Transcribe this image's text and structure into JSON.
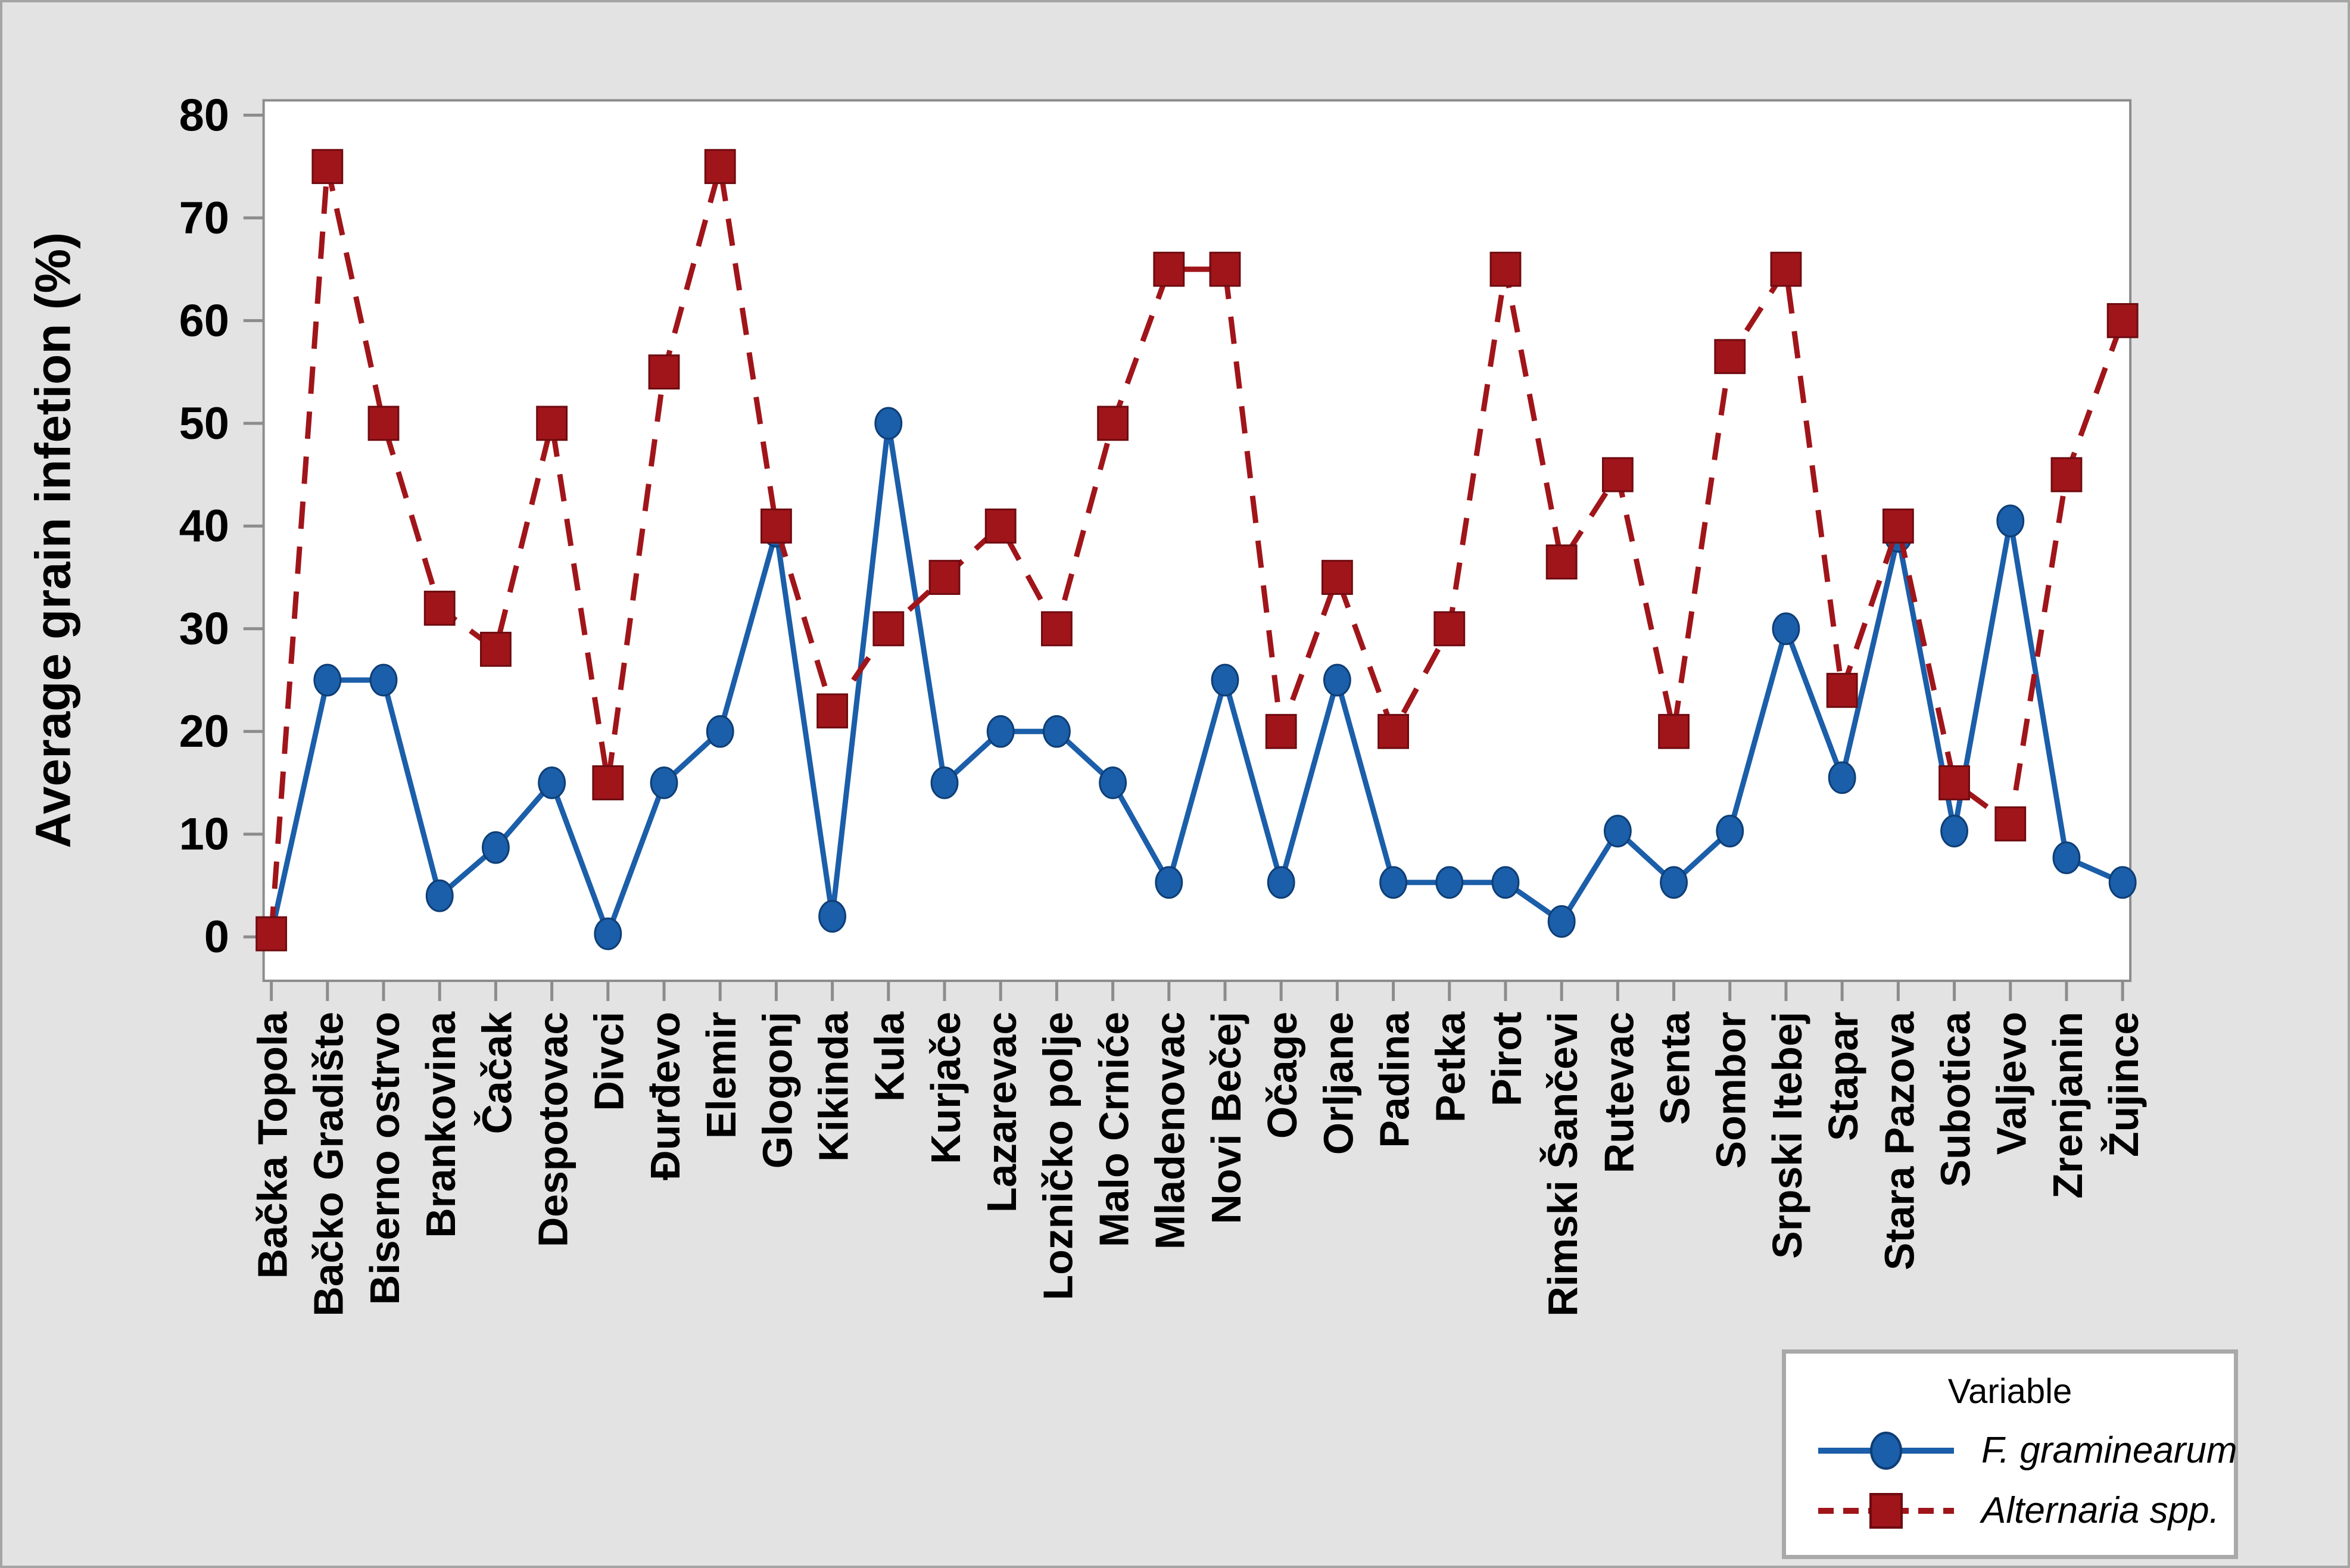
{
  "figure": {
    "background": "#e3e3e3",
    "plot_background": "#ffffff",
    "outer_border_color": "#a5a5a5",
    "frame_color": "#8c8c8c",
    "tick_color": "#8c8c8c",
    "text_color": "#000000"
  },
  "chart_data": {
    "type": "line",
    "title": "",
    "xlabel": "",
    "ylabel": "Average grain infetion (%)",
    "ylim": [
      0,
      80
    ],
    "yticks": [
      0,
      10,
      20,
      30,
      40,
      50,
      60,
      70,
      80
    ],
    "grid": false,
    "legend": {
      "title": "Variable",
      "position": "bottom-right-below-plot"
    },
    "categories": [
      "Bačka Topola",
      "Bačko Gradište",
      "Biserno ostrvo",
      "Brankovina",
      "Čačak",
      "Despotovac",
      "Divci",
      "Đurđevo",
      "Elemir",
      "Glogonj",
      "Kikinda",
      "Kula",
      "Kurjače",
      "Lazarevac",
      "Lozničko polje",
      "Malo Crniće",
      "Mladenovac",
      "Novi Bečej",
      "Očage",
      "Orljane",
      "Padina",
      "Petka",
      "Pirot",
      "Rimski Šančevi",
      "Rutevac",
      "Senta",
      "Sombor",
      "Srpski Itebej",
      "Stapar",
      "Stara Pazova",
      "Subotica",
      "Valjevo",
      "Zrenjanin",
      "Žujince"
    ],
    "series": [
      {
        "name": "F. graminearum",
        "color": "#1B5EA9",
        "edge_color": "#0E3E75",
        "line": "solid",
        "marker": "circle",
        "values": [
          0.3,
          25,
          25,
          4,
          8.7,
          15,
          0.3,
          15,
          20,
          39.5,
          2,
          50,
          15,
          20,
          20,
          15,
          5.3,
          25,
          5.3,
          25,
          5.3,
          5.3,
          5.3,
          1.5,
          10.3,
          5.3,
          10.3,
          30,
          15.5,
          39,
          10.3,
          40.5,
          7.7,
          5.3
        ]
      },
      {
        "name": "Alternaria spp.",
        "color": "#A0151A",
        "edge_color": "#6E0B10",
        "line": "dashed",
        "marker": "square",
        "values": [
          0.3,
          75,
          50,
          32,
          28,
          50,
          15,
          55,
          75,
          40,
          22,
          30,
          35,
          40,
          30,
          50,
          65,
          65,
          20,
          35,
          20,
          30,
          65,
          36.5,
          45,
          20,
          56.5,
          65,
          24,
          40,
          15,
          11,
          45,
          60
        ]
      }
    ]
  }
}
